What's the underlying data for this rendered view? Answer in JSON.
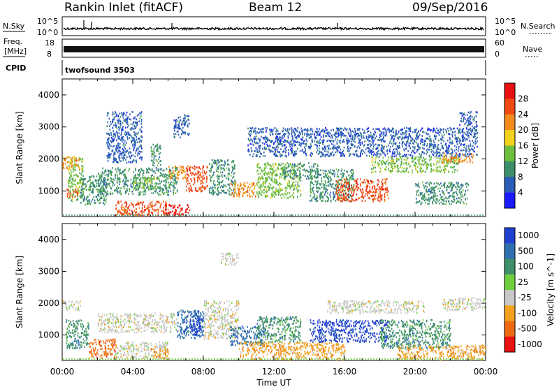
{
  "header": {
    "station": "Rankin Inlet (fitACF)",
    "beam": "Beam 12",
    "date": "09/Sep/2016"
  },
  "top_panels": {
    "nsky_label": "N.Sky",
    "nsearch_label": "N.Search",
    "nsky_ticks": [
      "10^5",
      "10^0"
    ],
    "freq_label_1": "Freq.",
    "freq_label_2": "[MHz]",
    "freq_ticks": [
      "18",
      "8"
    ],
    "nave_label": "Nave",
    "nave_ticks": [
      "60",
      "0"
    ],
    "cpid_label": "CPID",
    "cpid_value": "twofsound 3503"
  },
  "x_axis": {
    "label": "Time UT",
    "ticks": [
      "00:00",
      "04:00",
      "08:00",
      "12:00",
      "16:00",
      "20:00",
      "00:00"
    ],
    "range_hours": [
      0,
      24
    ]
  },
  "chart_data": [
    {
      "type": "heatmap",
      "name": "power",
      "ylabel": "Slant Range [km]",
      "y_ticks": [
        "1000",
        "2000",
        "3000",
        "4000"
      ],
      "ylim": [
        200,
        4500
      ],
      "colorbar_label": "Power [dB]",
      "colorbar_ticks": [
        "4",
        "8",
        "12",
        "16",
        "20",
        "24",
        "28"
      ],
      "colorbar_range": [
        0,
        32
      ],
      "colors": [
        "#1a1aff",
        "#2a5cb8",
        "#3c8f6a",
        "#6fbf3f",
        "#f2d21c",
        "#f28a1c",
        "#ee4a12",
        "#e81010"
      ],
      "regions": [
        {
          "t0": 0.3,
          "t1": 1.2,
          "r0": 700,
          "r1": 2100,
          "v": 12
        },
        {
          "t0": 0.0,
          "t1": 1.0,
          "r0": 1700,
          "r1": 2100,
          "v": 22
        },
        {
          "t0": 0.2,
          "t1": 0.9,
          "r0": 850,
          "r1": 1100,
          "v": 26
        },
        {
          "t0": 1.0,
          "t1": 2.5,
          "r0": 600,
          "r1": 1500,
          "v": 10
        },
        {
          "t0": 2.0,
          "t1": 6.5,
          "r0": 900,
          "r1": 1750,
          "v": 8
        },
        {
          "t0": 3.0,
          "t1": 6.0,
          "r0": 250,
          "r1": 700,
          "v": 25
        },
        {
          "t0": 4.0,
          "t1": 5.5,
          "r0": 1100,
          "r1": 1450,
          "v": 12
        },
        {
          "t0": 5.0,
          "t1": 5.6,
          "r0": 1800,
          "r1": 2500,
          "v": 10
        },
        {
          "t0": 5.8,
          "t1": 7.2,
          "r0": 250,
          "r1": 600,
          "v": 28
        },
        {
          "t0": 6.0,
          "t1": 7.0,
          "r0": 1400,
          "r1": 1800,
          "v": 20
        },
        {
          "t0": 6.3,
          "t1": 7.2,
          "r0": 2700,
          "r1": 3400,
          "v": 7
        },
        {
          "t0": 7.0,
          "t1": 8.2,
          "r0": 1000,
          "r1": 1800,
          "v": 24
        },
        {
          "t0": 8.3,
          "t1": 9.8,
          "r0": 900,
          "r1": 2000,
          "v": 10
        },
        {
          "t0": 9.5,
          "t1": 11.0,
          "r0": 850,
          "r1": 1300,
          "v": 22
        },
        {
          "t0": 11.0,
          "t1": 13.5,
          "r0": 800,
          "r1": 1900,
          "v": 12
        },
        {
          "t0": 12.5,
          "t1": 14.5,
          "r0": 1400,
          "r1": 1900,
          "v": 9
        },
        {
          "t0": 14.0,
          "t1": 16.5,
          "r0": 700,
          "r1": 1700,
          "v": 11
        },
        {
          "t0": 15.5,
          "t1": 18.5,
          "r0": 700,
          "r1": 1400,
          "v": 24
        },
        {
          "t0": 17.5,
          "t1": 22.5,
          "r0": 1600,
          "r1": 2100,
          "v": 13
        },
        {
          "t0": 20.0,
          "t1": 23.0,
          "r0": 600,
          "r1": 1300,
          "v": 10
        },
        {
          "t0": 21.5,
          "t1": 23.3,
          "r0": 1900,
          "r1": 2200,
          "v": 20
        },
        {
          "t0": 22.5,
          "t1": 23.5,
          "r0": 2900,
          "r1": 3500,
          "v": 6
        },
        {
          "t0": 10.5,
          "t1": 23.5,
          "r0": 2100,
          "r1": 3000,
          "v": 5
        },
        {
          "t0": 2.5,
          "t1": 4.5,
          "r0": 1900,
          "r1": 3500,
          "v": 6
        }
      ]
    },
    {
      "type": "heatmap",
      "name": "velocity",
      "ylabel": "Slant Range [km]",
      "y_ticks": [
        "1000",
        "2000",
        "3000",
        "4000"
      ],
      "ylim": [
        200,
        4500
      ],
      "colorbar_label": "Velocity [m s^-1]",
      "colorbar_ticks": [
        "1000",
        "500",
        "100",
        "25",
        "-25",
        "-100",
        "-500",
        "-1000"
      ],
      "colors": [
        "#2040d0",
        "#2f6fb0",
        "#3f8f6a",
        "#6fcf3f",
        "#c8c8c8",
        "#f2a21c",
        "#ee6a12",
        "#e81010"
      ],
      "regions": [
        {
          "t0": 0.0,
          "t1": 1.0,
          "r0": 1800,
          "r1": 2100,
          "v": -25
        },
        {
          "t0": 0.2,
          "t1": 1.5,
          "r0": 600,
          "r1": 1500,
          "v": 100
        },
        {
          "t0": 1.5,
          "t1": 3.0,
          "r0": 300,
          "r1": 900,
          "v": -500
        },
        {
          "t0": 2.0,
          "t1": 6.5,
          "r0": 1100,
          "r1": 1700,
          "v": -25
        },
        {
          "t0": 3.0,
          "t1": 6.0,
          "r0": 300,
          "r1": 800,
          "v": -25
        },
        {
          "t0": 5.0,
          "t1": 6.0,
          "r0": 250,
          "r1": 600,
          "v": -100
        },
        {
          "t0": 6.5,
          "t1": 8.0,
          "r0": 900,
          "r1": 1800,
          "v": 500
        },
        {
          "t0": 7.2,
          "t1": 8.0,
          "r0": 1000,
          "r1": 1600,
          "v": 1000
        },
        {
          "t0": 8.0,
          "t1": 10.0,
          "r0": 900,
          "r1": 2100,
          "v": -25
        },
        {
          "t0": 9.5,
          "t1": 11.5,
          "r0": 700,
          "r1": 1300,
          "v": 500
        },
        {
          "t0": 11.0,
          "t1": 13.5,
          "r0": 800,
          "r1": 1600,
          "v": 100
        },
        {
          "t0": 10.0,
          "t1": 16.0,
          "r0": 250,
          "r1": 800,
          "v": -100
        },
        {
          "t0": 14.0,
          "t1": 18.5,
          "r0": 800,
          "r1": 1500,
          "v": 1000
        },
        {
          "t0": 15.0,
          "t1": 20.5,
          "r0": 1700,
          "r1": 2100,
          "v": -25
        },
        {
          "t0": 18.0,
          "t1": 22.0,
          "r0": 600,
          "r1": 1500,
          "v": 100
        },
        {
          "t0": 19.0,
          "t1": 24.0,
          "r0": 250,
          "r1": 700,
          "v": -100
        },
        {
          "t0": 21.5,
          "t1": 24.0,
          "r0": 1800,
          "r1": 2200,
          "v": -25
        },
        {
          "t0": 9.0,
          "t1": 10.0,
          "r0": 3200,
          "r1": 3600,
          "v": -25
        }
      ]
    }
  ]
}
